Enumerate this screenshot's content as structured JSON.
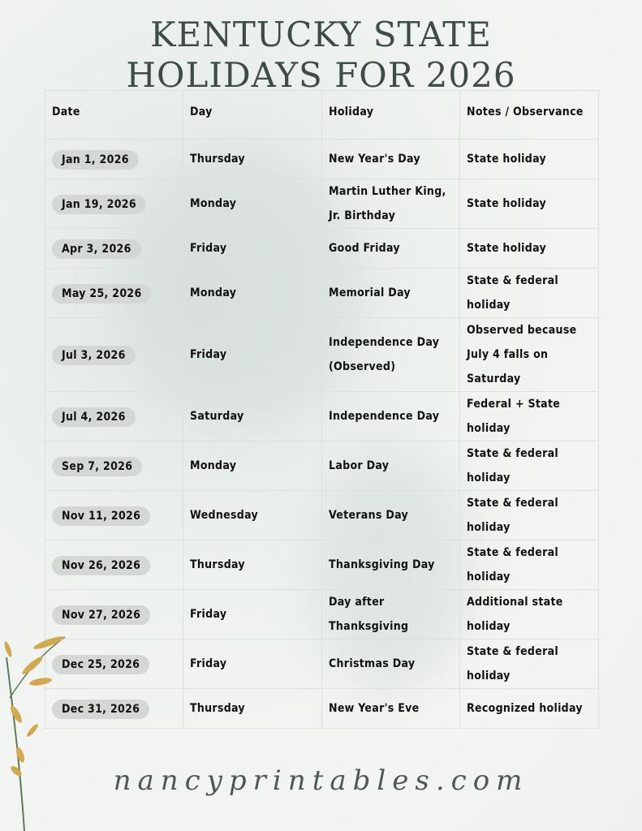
{
  "title_line1": "KENTUCKY STATE",
  "title_line2": "HOLIDAYS FOR 2026",
  "table": {
    "headers": [
      "Date",
      "Day",
      "Holiday",
      "Notes / Observance"
    ],
    "rows": [
      {
        "date": "Jan 1, 2026",
        "day": "Thursday",
        "holiday": "New Year's Day",
        "notes": "State holiday"
      },
      {
        "date": "Jan 19, 2026",
        "day": "Monday",
        "holiday": "Martin Luther King, Jr. Birthday",
        "notes": "State holiday"
      },
      {
        "date": "Apr 3, 2026",
        "day": "Friday",
        "holiday": "Good Friday",
        "notes": "State holiday"
      },
      {
        "date": "May 25, 2026",
        "day": "Monday",
        "holiday": "Memorial Day",
        "notes": "State & federal holiday"
      },
      {
        "date": "Jul 3, 2026",
        "day": "Friday",
        "holiday": "Independence Day (Observed)",
        "notes": "Observed because July 4 falls on Saturday"
      },
      {
        "date": "Jul 4, 2026",
        "day": "Saturday",
        "holiday": "Independence Day",
        "notes": "Federal + State holiday"
      },
      {
        "date": "Sep 7, 2026",
        "day": "Monday",
        "holiday": "Labor Day",
        "notes": "State & federal holiday"
      },
      {
        "date": "Nov 11, 2026",
        "day": "Wednesday",
        "holiday": "Veterans Day",
        "notes": "State & federal holiday"
      },
      {
        "date": "Nov 26, 2026",
        "day": "Thursday",
        "holiday": "Thanksgiving Day",
        "notes": "State & federal holiday"
      },
      {
        "date": "Nov 27, 2026",
        "day": "Friday",
        "holiday": "Day after Thanksgiving",
        "notes": "Additional state holiday"
      },
      {
        "date": "Dec 25, 2026",
        "day": "Friday",
        "holiday": "Christmas Day",
        "notes": "State & federal holiday"
      },
      {
        "date": "Dec 31, 2026",
        "day": "Thursday",
        "holiday": "New Year's Eve",
        "notes": "Recognized holiday"
      }
    ]
  },
  "footer": "nancyprintables.com",
  "colors": {
    "title": "#3e4c45",
    "pill": "#d3d8d5",
    "plant": "#d4a84f"
  }
}
